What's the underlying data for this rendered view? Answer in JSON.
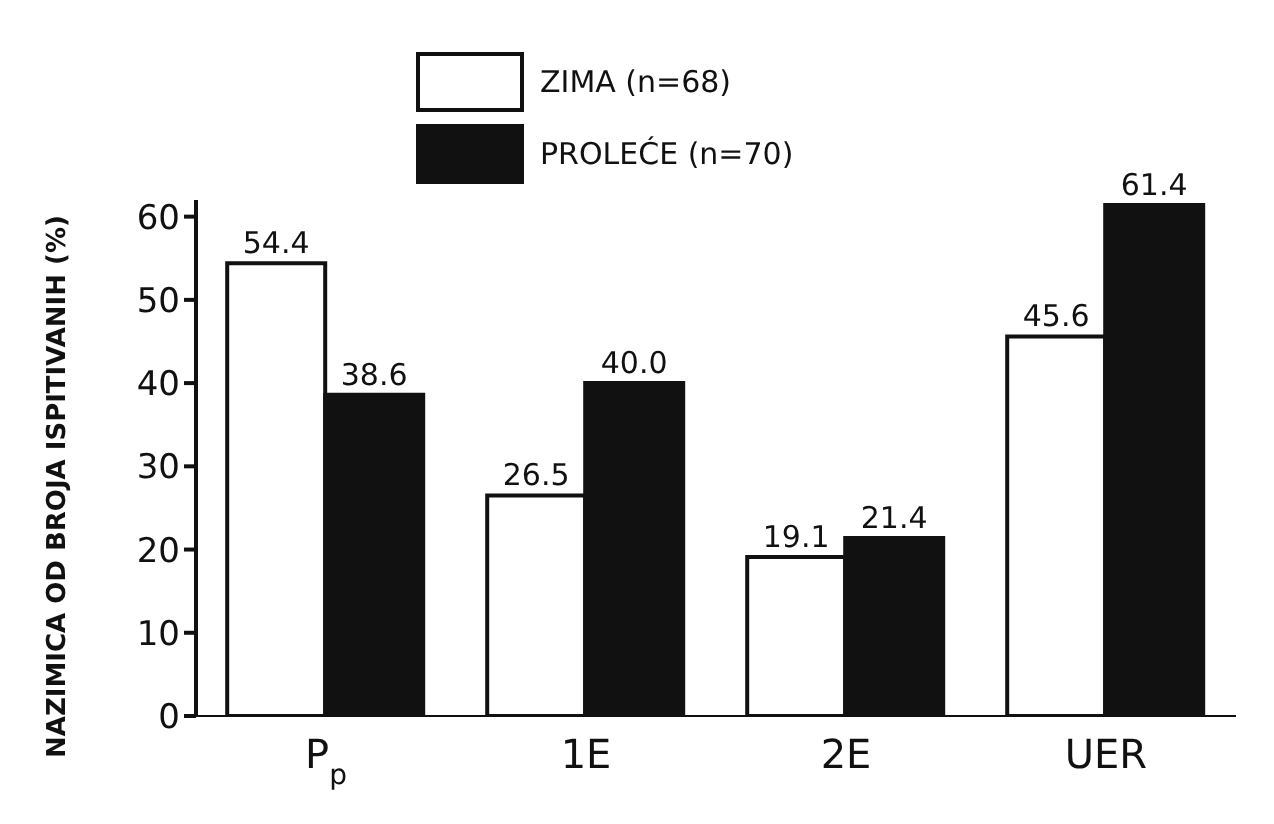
{
  "chart_data": {
    "type": "bar",
    "ylabel": "NAZIMICA OD BROJA ISPITIVANIH (%)",
    "categories": [
      "P$_{p}$",
      "1E",
      "2E",
      "UER"
    ],
    "series": [
      {
        "name": "ZIMA (n=68)",
        "color": "#ffffff",
        "values": [
          54.4,
          26.5,
          19.1,
          45.6
        ],
        "value_labels": [
          "54.4",
          "26.5",
          "19.1",
          "45.6"
        ]
      },
      {
        "name": "PROLEĆE (n=70)",
        "color": "#111111",
        "values": [
          38.6,
          40.0,
          21.4,
          61.4
        ],
        "value_labels": [
          "38.6",
          "40.0",
          "21.4",
          "61.4"
        ]
      }
    ],
    "ylim": [
      0,
      62
    ],
    "yticks": [
      0,
      10,
      20,
      30,
      40,
      50,
      60
    ],
    "grid": false,
    "legend": "top"
  }
}
